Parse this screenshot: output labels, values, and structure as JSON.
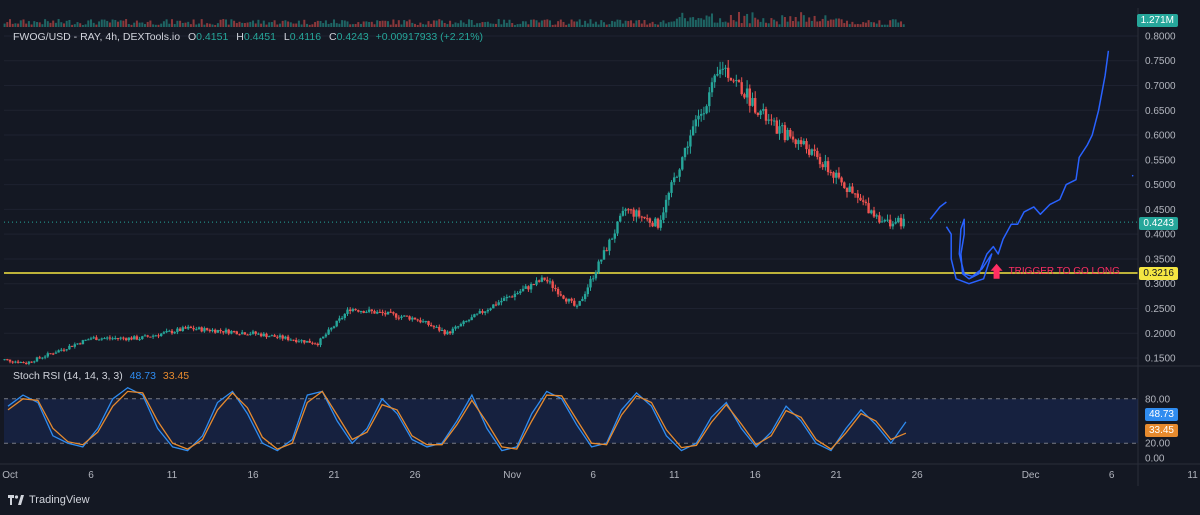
{
  "header": {
    "symbol": "FWOG/USD - RAY, 4h, DEXTools.io",
    "open_label": "O",
    "open_value": "0.4151",
    "high_label": "H",
    "high_value": "0.4451",
    "low_label": "L",
    "low_value": "0.4116",
    "close_label": "C",
    "close_value": "0.4243",
    "change": "+0.00917933 (+2.21%)"
  },
  "price_labels": {
    "volume": "1.271M",
    "last": "0.4243",
    "level": "0.3216",
    "stoch_k": "48.73",
    "stoch_d": "33.45"
  },
  "annotation": "TRIGGER TO GO LONG",
  "stoch_legend": {
    "title": "Stoch RSI (14, 14, 3, 3)",
    "k": "48.73",
    "d": "33.45"
  },
  "footer": {
    "brand": "TradingView"
  },
  "colors": {
    "background": "#141823",
    "up": "#26a69a",
    "down": "#ef5350",
    "level_line": "#f5e642",
    "projection": "#2962ff",
    "annotation": "#ff2e63",
    "stoch_k": "#2f8cf0",
    "stoch_d": "#e68a2e"
  },
  "chart_data": [
    {
      "type": "candlestick",
      "title": "FWOG/USD - RAY, 4h, DEXTools.io",
      "x_ticks": [
        "Oct",
        "6",
        "11",
        "16",
        "21",
        "26",
        "Nov",
        "6",
        "11",
        "16",
        "21",
        "26",
        "Dec",
        "6",
        "11"
      ],
      "y_ticks": [
        "0.8000",
        "0.7500",
        "0.7000",
        "0.6500",
        "0.6000",
        "0.5500",
        "0.5000",
        "0.4500",
        "0.4000",
        "0.3500",
        "0.3000",
        "0.2500",
        "0.2000",
        "0.1500"
      ],
      "ylim": [
        0.14,
        0.81
      ],
      "horizontal_level": 0.3216,
      "last_price": 0.4243,
      "series_close_keypoints": [
        {
          "x": "Sep 29",
          "y": 0.15
        },
        {
          "x": "Oct 2",
          "y": 0.14
        },
        {
          "x": "Oct 6",
          "y": 0.19
        },
        {
          "x": "Oct 9",
          "y": 0.19
        },
        {
          "x": "Oct 12",
          "y": 0.21
        },
        {
          "x": "Oct 16",
          "y": 0.2
        },
        {
          "x": "Oct 20",
          "y": 0.18
        },
        {
          "x": "Oct 22",
          "y": 0.25
        },
        {
          "x": "Oct 26",
          "y": 0.23
        },
        {
          "x": "Oct 28",
          "y": 0.2
        },
        {
          "x": "Oct 31",
          "y": 0.26
        },
        {
          "x": "Nov 3",
          "y": 0.31
        },
        {
          "x": "Nov 5",
          "y": 0.25
        },
        {
          "x": "Nov 8",
          "y": 0.45
        },
        {
          "x": "Nov 10",
          "y": 0.42
        },
        {
          "x": "Nov 12",
          "y": 0.6
        },
        {
          "x": "Nov 14",
          "y": 0.74
        },
        {
          "x": "Nov 17",
          "y": 0.62
        },
        {
          "x": "Nov 19",
          "y": 0.58
        },
        {
          "x": "Nov 22",
          "y": 0.48
        },
        {
          "x": "Nov 24",
          "y": 0.424
        }
      ],
      "volume_last": "1.271M"
    },
    {
      "type": "line",
      "title": "Stoch RSI (14, 14, 3, 3)",
      "y_ticks": [
        "80.00",
        "20.00",
        "0.00"
      ],
      "ylim": [
        0,
        100
      ],
      "bands": [
        20,
        80
      ],
      "series": [
        {
          "name": "K",
          "last": 48.73,
          "values": [
            70,
            85,
            75,
            30,
            20,
            15,
            40,
            80,
            95,
            85,
            40,
            15,
            10,
            30,
            75,
            90,
            60,
            20,
            10,
            25,
            85,
            90,
            50,
            20,
            40,
            80,
            60,
            25,
            15,
            20,
            50,
            85,
            40,
            10,
            15,
            60,
            90,
            80,
            45,
            15,
            20,
            65,
            88,
            70,
            30,
            10,
            20,
            55,
            75,
            40,
            15,
            35,
            70,
            50,
            20,
            10,
            40,
            65,
            45,
            20,
            48.73
          ]
        },
        {
          "name": "D",
          "last": 33.45,
          "values": [
            65,
            80,
            78,
            40,
            22,
            18,
            35,
            70,
            90,
            88,
            50,
            20,
            12,
            25,
            65,
            88,
            68,
            28,
            12,
            20,
            75,
            90,
            58,
            25,
            35,
            72,
            65,
            30,
            18,
            18,
            45,
            78,
            48,
            15,
            12,
            50,
            85,
            84,
            52,
            20,
            18,
            58,
            84,
            75,
            38,
            14,
            17,
            48,
            72,
            46,
            18,
            30,
            64,
            55,
            25,
            12,
            34,
            60,
            50,
            25,
            33.45
          ]
        }
      ]
    }
  ]
}
